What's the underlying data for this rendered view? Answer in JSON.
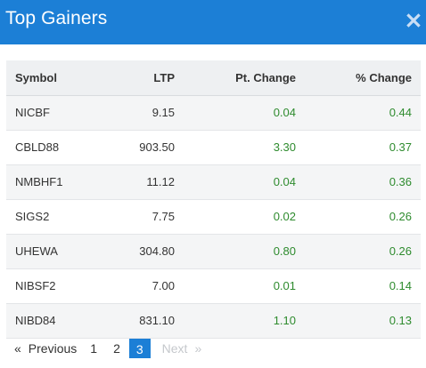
{
  "header": {
    "title": "Top Gainers",
    "close_icon": "close-icon"
  },
  "table": {
    "columns": [
      "Symbol",
      "LTP",
      "Pt. Change",
      "% Change"
    ],
    "rows": [
      {
        "symbol": "NICBF",
        "ltp": "9.15",
        "pt_change": "0.04",
        "pct_change": "0.44"
      },
      {
        "symbol": "CBLD88",
        "ltp": "903.50",
        "pt_change": "3.30",
        "pct_change": "0.37"
      },
      {
        "symbol": "NMBHF1",
        "ltp": "11.12",
        "pt_change": "0.04",
        "pct_change": "0.36"
      },
      {
        "symbol": "SIGS2",
        "ltp": "7.75",
        "pt_change": "0.02",
        "pct_change": "0.26"
      },
      {
        "symbol": "UHEWA",
        "ltp": "304.80",
        "pt_change": "0.80",
        "pct_change": "0.26"
      },
      {
        "symbol": "NIBSF2",
        "ltp": "7.00",
        "pt_change": "0.01",
        "pct_change": "0.14"
      },
      {
        "symbol": "NIBD84",
        "ltp": "831.10",
        "pt_change": "1.10",
        "pct_change": "0.13"
      }
    ]
  },
  "pagination": {
    "prev_arrow": "«",
    "prev_label": "Previous",
    "pages": [
      "1",
      "2",
      "3"
    ],
    "active_page": "3",
    "next_label": "Next",
    "next_arrow": "»"
  },
  "colors": {
    "accent": "#1c7fd6",
    "positive": "#2e8b2e",
    "disabled": "#c5c8cc"
  }
}
